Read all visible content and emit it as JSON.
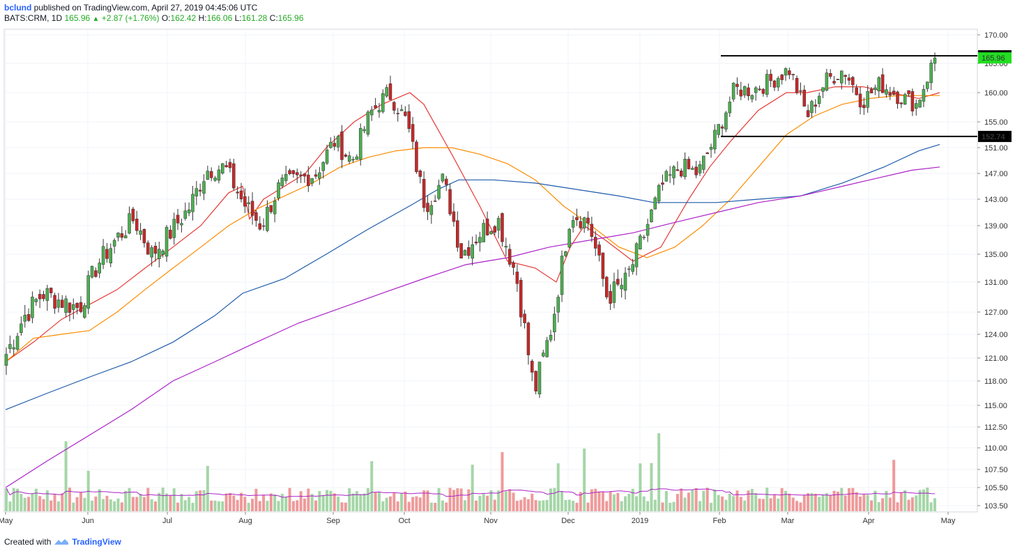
{
  "header": {
    "author": "bclund",
    "published_text": "published on TradingView.com, April 27, 2019 04:45:06 UTC",
    "symbol": "BATS:CRM, 1D",
    "last": "165.96",
    "change": "+2.87 (+1.76%)",
    "open_label": "O:",
    "open": "162.42",
    "high_label": "H:",
    "high": "166.06",
    "low_label": "L:",
    "low": "161.28",
    "close_label": "C:",
    "close": "165.96"
  },
  "footer": {
    "created_with": "Created with",
    "brand": "TradingView"
  },
  "colors": {
    "up": "#4caf50",
    "down": "#c62828",
    "up_volume": "#a5d6a7",
    "down_volume": "#ef9a9a",
    "ma20": "#e53935",
    "ma50": "#fb8c00",
    "ma100": "#1e5bab",
    "ma200": "#ab22c8",
    "resistance": "#000000",
    "last_price_badge": "#22dd22"
  },
  "chart_data": {
    "type": "candlestick",
    "symbol": "BATS:CRM",
    "interval": "1D",
    "y_ticks": [
      "170.00",
      "165.00",
      "160.00",
      "155.00",
      "151.00",
      "147.00",
      "143.00",
      "139.00",
      "135.00",
      "131.00",
      "127.00",
      "124.00",
      "121.00",
      "118.00",
      "115.00",
      "112.50",
      "110.00",
      "107.50",
      "105.50",
      "103.50"
    ],
    "x_labels": [
      "May",
      "Jun",
      "Jul",
      "Aug",
      "Sep",
      "Oct",
      "Nov",
      "Dec",
      "2019",
      "Feb",
      "Mar",
      "Apr",
      "May"
    ],
    "ohlc_close_series": [
      {
        "date": "2018-05-01",
        "close": 121.5
      },
      {
        "date": "2018-05-08",
        "close": 126.5
      },
      {
        "date": "2018-05-15",
        "close": 129.5
      },
      {
        "date": "2018-05-22",
        "close": 128.5
      },
      {
        "date": "2018-05-29",
        "close": 127.5
      },
      {
        "date": "2018-06-05",
        "close": 133.5
      },
      {
        "date": "2018-06-12",
        "close": 137.0
      },
      {
        "date": "2018-06-19",
        "close": 140.0
      },
      {
        "date": "2018-06-26",
        "close": 135.0
      },
      {
        "date": "2018-07-03",
        "close": 138.0
      },
      {
        "date": "2018-07-10",
        "close": 141.5
      },
      {
        "date": "2018-07-17",
        "close": 147.5
      },
      {
        "date": "2018-07-24",
        "close": 148.0
      },
      {
        "date": "2018-07-31",
        "close": 142.5
      },
      {
        "date": "2018-08-07",
        "close": 139.0
      },
      {
        "date": "2018-08-14",
        "close": 145.0
      },
      {
        "date": "2018-08-21",
        "close": 146.0
      },
      {
        "date": "2018-08-28",
        "close": 147.0
      },
      {
        "date": "2018-09-04",
        "close": 152.0
      },
      {
        "date": "2018-09-11",
        "close": 149.0
      },
      {
        "date": "2018-09-18",
        "close": 156.5
      },
      {
        "date": "2018-09-25",
        "close": 160.0
      },
      {
        "date": "2018-10-02",
        "close": 155.0
      },
      {
        "date": "2018-10-09",
        "close": 142.0
      },
      {
        "date": "2018-10-16",
        "close": 146.0
      },
      {
        "date": "2018-10-23",
        "close": 135.0
      },
      {
        "date": "2018-10-30",
        "close": 138.0
      },
      {
        "date": "2018-11-06",
        "close": 140.0
      },
      {
        "date": "2018-11-13",
        "close": 132.0
      },
      {
        "date": "2018-11-20",
        "close": 116.5
      },
      {
        "date": "2018-11-27",
        "close": 125.5
      },
      {
        "date": "2018-12-04",
        "close": 141.0
      },
      {
        "date": "2018-12-11",
        "close": 139.5
      },
      {
        "date": "2018-12-18",
        "close": 129.0
      },
      {
        "date": "2018-12-26",
        "close": 131.0
      },
      {
        "date": "2019-01-02",
        "close": 137.5
      },
      {
        "date": "2019-01-09",
        "close": 145.0
      },
      {
        "date": "2019-01-16",
        "close": 148.0
      },
      {
        "date": "2019-01-23",
        "close": 147.0
      },
      {
        "date": "2019-01-30",
        "close": 153.0
      },
      {
        "date": "2019-02-06",
        "close": 160.5
      },
      {
        "date": "2019-02-13",
        "close": 160.5
      },
      {
        "date": "2019-02-20",
        "close": 162.0
      },
      {
        "date": "2019-02-27",
        "close": 164.0
      },
      {
        "date": "2019-03-06",
        "close": 156.0
      },
      {
        "date": "2019-03-13",
        "close": 162.0
      },
      {
        "date": "2019-03-20",
        "close": 164.0
      },
      {
        "date": "2019-03-27",
        "close": 158.5
      },
      {
        "date": "2019-04-03",
        "close": 161.5
      },
      {
        "date": "2019-04-10",
        "close": 159.5
      },
      {
        "date": "2019-04-17",
        "close": 158.0
      },
      {
        "date": "2019-04-26",
        "close": 165.96
      }
    ],
    "horizontal_lines": [
      {
        "label": "166.33",
        "value": 166.33
      },
      {
        "label": "152.74",
        "value": 152.74
      }
    ],
    "last_price": {
      "label": "165.96",
      "value": 165.96
    },
    "moving_averages": [
      {
        "name": "MA20",
        "points": [
          [
            0,
            120.5
          ],
          [
            40,
            123
          ],
          [
            80,
            126
          ],
          [
            120,
            128
          ],
          [
            160,
            130
          ],
          [
            200,
            133
          ],
          [
            240,
            136
          ],
          [
            280,
            139
          ],
          [
            320,
            144
          ],
          [
            340,
            145
          ],
          [
            350,
            140
          ],
          [
            370,
            143
          ],
          [
            400,
            145
          ],
          [
            430,
            147
          ],
          [
            460,
            151
          ],
          [
            500,
            155
          ],
          [
            540,
            158
          ],
          [
            580,
            160
          ],
          [
            600,
            158
          ],
          [
            640,
            150
          ],
          [
            680,
            142
          ],
          [
            720,
            134
          ],
          [
            760,
            133
          ],
          [
            790,
            131
          ],
          [
            810,
            136
          ],
          [
            830,
            139
          ],
          [
            860,
            137
          ],
          [
            900,
            134
          ],
          [
            940,
            136
          ],
          [
            980,
            143
          ],
          [
            1010,
            148
          ],
          [
            1040,
            152
          ],
          [
            1080,
            157
          ],
          [
            1120,
            160
          ],
          [
            1150,
            160
          ],
          [
            1190,
            161
          ],
          [
            1230,
            161
          ],
          [
            1270,
            160
          ],
          [
            1310,
            159
          ],
          [
            1340,
            160
          ]
        ]
      },
      {
        "name": "MA50",
        "points": [
          [
            0,
            120.5
          ],
          [
            40,
            123.5
          ],
          [
            80,
            124
          ],
          [
            120,
            124.5
          ],
          [
            160,
            127
          ],
          [
            200,
            130
          ],
          [
            240,
            133
          ],
          [
            280,
            136
          ],
          [
            320,
            139
          ],
          [
            360,
            141.5
          ],
          [
            400,
            143.5
          ],
          [
            440,
            145.5
          ],
          [
            480,
            148
          ],
          [
            520,
            149.5
          ],
          [
            560,
            150.5
          ],
          [
            600,
            151
          ],
          [
            640,
            151
          ],
          [
            680,
            150
          ],
          [
            720,
            148.5
          ],
          [
            760,
            146
          ],
          [
            800,
            142
          ],
          [
            840,
            139
          ],
          [
            880,
            136
          ],
          [
            920,
            134.5
          ],
          [
            960,
            136
          ],
          [
            1000,
            139
          ],
          [
            1040,
            143
          ],
          [
            1080,
            148
          ],
          [
            1120,
            153
          ],
          [
            1160,
            156
          ],
          [
            1200,
            158
          ],
          [
            1240,
            159
          ],
          [
            1280,
            159.5
          ],
          [
            1340,
            159.5
          ]
        ]
      },
      {
        "name": "MA100",
        "points": [
          [
            0,
            114.5
          ],
          [
            60,
            116.5
          ],
          [
            120,
            118.5
          ],
          [
            180,
            120.5
          ],
          [
            240,
            123
          ],
          [
            300,
            126.5
          ],
          [
            340,
            129.5
          ],
          [
            400,
            131.5
          ],
          [
            460,
            135
          ],
          [
            520,
            138.5
          ],
          [
            580,
            142
          ],
          [
            620,
            144.5
          ],
          [
            650,
            146
          ],
          [
            700,
            146
          ],
          [
            760,
            145.5
          ],
          [
            820,
            144.5
          ],
          [
            880,
            143.5
          ],
          [
            930,
            142.5
          ],
          [
            980,
            142.5
          ],
          [
            1020,
            142.5
          ],
          [
            1080,
            143
          ],
          [
            1140,
            143.5
          ],
          [
            1200,
            145.5
          ],
          [
            1260,
            148
          ],
          [
            1310,
            150.5
          ],
          [
            1340,
            151.5
          ]
        ]
      },
      {
        "name": "MA200",
        "points": [
          [
            0,
            105.5
          ],
          [
            60,
            108.5
          ],
          [
            120,
            111.5
          ],
          [
            180,
            114.5
          ],
          [
            240,
            118
          ],
          [
            300,
            120.5
          ],
          [
            360,
            123
          ],
          [
            420,
            125.5
          ],
          [
            480,
            127.5
          ],
          [
            540,
            129.5
          ],
          [
            600,
            131.5
          ],
          [
            660,
            133.5
          ],
          [
            720,
            134.5
          ],
          [
            780,
            136
          ],
          [
            840,
            137
          ],
          [
            900,
            138
          ],
          [
            960,
            139.5
          ],
          [
            1020,
            141
          ],
          [
            1080,
            142.5
          ],
          [
            1140,
            143.5
          ],
          [
            1200,
            145
          ],
          [
            1260,
            146.5
          ],
          [
            1300,
            147.5
          ],
          [
            1340,
            148
          ]
        ]
      }
    ]
  }
}
